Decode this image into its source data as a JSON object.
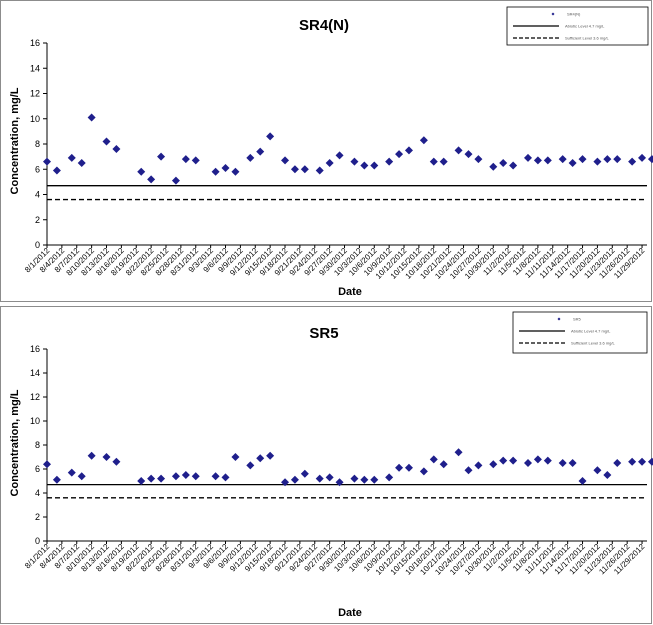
{
  "chart_data": [
    {
      "type": "scatter",
      "title": "SR4(N)",
      "xlabel": "Date",
      "ylabel": "Concentration, mg/L",
      "ylim": [
        0,
        16
      ],
      "yticks": [
        0,
        2,
        4,
        6,
        8,
        10,
        12,
        14,
        16
      ],
      "xlim": [
        "8/1/2012",
        "11/30/2012"
      ],
      "xticks": [
        "8/1/2012",
        "8/4/2012",
        "8/7/2012",
        "8/10/2012",
        "8/13/2012",
        "8/16/2012",
        "8/19/2012",
        "8/22/2012",
        "8/25/2012",
        "8/28/2012",
        "8/31/2012",
        "9/3/2012",
        "9/6/2012",
        "9/9/2012",
        "9/12/2012",
        "9/15/2012",
        "9/18/2012",
        "9/21/2012",
        "9/24/2012",
        "9/27/2012",
        "9/30/2012",
        "10/3/2012",
        "10/6/2012",
        "10/9/2012",
        "10/12/2012",
        "10/15/2012",
        "10/18/2012",
        "10/21/2012",
        "10/24/2012",
        "10/27/2012",
        "10/30/2012",
        "11/2/2012",
        "11/5/2012",
        "11/8/2012",
        "11/11/2012",
        "11/14/2012",
        "11/17/2012",
        "11/20/2012",
        "11/23/2012",
        "11/26/2012",
        "11/29/2012"
      ],
      "grid": false,
      "legend_position": "top-right",
      "series": [
        {
          "name": "SR4(N)",
          "marker": "diamond",
          "color": "#1f1f8c",
          "points": [
            {
              "x": "8/1/2012",
              "y": 6.6
            },
            {
              "x": "8/3/2012",
              "y": 5.9
            },
            {
              "x": "8/6/2012",
              "y": 6.9
            },
            {
              "x": "8/8/2012",
              "y": 6.5
            },
            {
              "x": "8/10/2012",
              "y": 10.1
            },
            {
              "x": "8/13/2012",
              "y": 8.2
            },
            {
              "x": "8/15/2012",
              "y": 7.6
            },
            {
              "x": "8/20/2012",
              "y": 5.8
            },
            {
              "x": "8/22/2012",
              "y": 5.2
            },
            {
              "x": "8/24/2012",
              "y": 7.0
            },
            {
              "x": "8/27/2012",
              "y": 5.1
            },
            {
              "x": "8/29/2012",
              "y": 6.8
            },
            {
              "x": "8/31/2012",
              "y": 6.7
            },
            {
              "x": "9/4/2012",
              "y": 5.8
            },
            {
              "x": "9/6/2012",
              "y": 6.1
            },
            {
              "x": "9/8/2012",
              "y": 5.8
            },
            {
              "x": "9/11/2012",
              "y": 6.9
            },
            {
              "x": "9/13/2012",
              "y": 7.4
            },
            {
              "x": "9/15/2012",
              "y": 8.6
            },
            {
              "x": "9/18/2012",
              "y": 6.7
            },
            {
              "x": "9/20/2012",
              "y": 6.0
            },
            {
              "x": "9/22/2012",
              "y": 6.0
            },
            {
              "x": "9/25/2012",
              "y": 5.9
            },
            {
              "x": "9/27/2012",
              "y": 6.5
            },
            {
              "x": "9/29/2012",
              "y": 7.1
            },
            {
              "x": "10/2/2012",
              "y": 6.6
            },
            {
              "x": "10/4/2012",
              "y": 6.3
            },
            {
              "x": "10/6/2012",
              "y": 6.3
            },
            {
              "x": "10/9/2012",
              "y": 6.6
            },
            {
              "x": "10/11/2012",
              "y": 7.2
            },
            {
              "x": "10/13/2012",
              "y": 7.5
            },
            {
              "x": "10/16/2012",
              "y": 8.3
            },
            {
              "x": "10/18/2012",
              "y": 6.6
            },
            {
              "x": "10/20/2012",
              "y": 6.6
            },
            {
              "x": "10/23/2012",
              "y": 7.5
            },
            {
              "x": "10/25/2012",
              "y": 7.2
            },
            {
              "x": "10/27/2012",
              "y": 6.8
            },
            {
              "x": "10/30/2012",
              "y": 6.2
            },
            {
              "x": "11/1/2012",
              "y": 6.5
            },
            {
              "x": "11/3/2012",
              "y": 6.3
            },
            {
              "x": "11/6/2012",
              "y": 6.9
            },
            {
              "x": "11/8/2012",
              "y": 6.7
            },
            {
              "x": "11/10/2012",
              "y": 6.7
            },
            {
              "x": "11/13/2012",
              "y": 6.8
            },
            {
              "x": "11/15/2012",
              "y": 6.5
            },
            {
              "x": "11/17/2012",
              "y": 6.8
            },
            {
              "x": "11/20/2012",
              "y": 6.6
            },
            {
              "x": "11/22/2012",
              "y": 6.8
            },
            {
              "x": "11/24/2012",
              "y": 6.8
            },
            {
              "x": "11/27/2012",
              "y": 6.6
            },
            {
              "x": "11/29/2012",
              "y": 6.9
            },
            {
              "x": "12/1/2012",
              "y": 6.8
            }
          ]
        }
      ],
      "reference_lines": [
        {
          "y": 4.7,
          "style": "solid",
          "legend": "Abiotic Level 4.7 mg/L"
        },
        {
          "y": 3.6,
          "style": "dashed",
          "legend": "Sufficient Level 3.6 mg/L"
        }
      ]
    },
    {
      "type": "scatter",
      "title": "SR5",
      "xlabel": "Date",
      "ylabel": "Concentration, mg/L",
      "ylim": [
        0,
        16
      ],
      "yticks": [
        0,
        2,
        4,
        6,
        8,
        10,
        12,
        14,
        16
      ],
      "xlim": [
        "8/1/2012",
        "11/30/2012"
      ],
      "xticks": [
        "8/1/2012",
        "8/4/2012",
        "8/7/2012",
        "8/10/2012",
        "8/13/2012",
        "8/16/2012",
        "8/19/2012",
        "8/22/2012",
        "8/25/2012",
        "8/28/2012",
        "8/31/2012",
        "9/3/2012",
        "9/6/2012",
        "9/9/2012",
        "9/12/2012",
        "9/15/2012",
        "9/18/2012",
        "9/21/2012",
        "9/24/2012",
        "9/27/2012",
        "9/30/2012",
        "10/3/2012",
        "10/6/2012",
        "10/9/2012",
        "10/12/2012",
        "10/15/2012",
        "10/18/2012",
        "10/21/2012",
        "10/24/2012",
        "10/27/2012",
        "10/30/2012",
        "11/2/2012",
        "11/5/2012",
        "11/8/2012",
        "11/11/2012",
        "11/14/2012",
        "11/17/2012",
        "11/20/2012",
        "11/23/2012",
        "11/26/2012",
        "11/29/2012"
      ],
      "grid": false,
      "legend_position": "top-right",
      "series": [
        {
          "name": "SR5",
          "marker": "diamond",
          "color": "#1f1f8c",
          "points": [
            {
              "x": "8/1/2012",
              "y": 6.4
            },
            {
              "x": "8/3/2012",
              "y": 5.1
            },
            {
              "x": "8/6/2012",
              "y": 5.7
            },
            {
              "x": "8/8/2012",
              "y": 5.4
            },
            {
              "x": "8/10/2012",
              "y": 7.1
            },
            {
              "x": "8/13/2012",
              "y": 7.0
            },
            {
              "x": "8/15/2012",
              "y": 6.6
            },
            {
              "x": "8/20/2012",
              "y": 5.0
            },
            {
              "x": "8/22/2012",
              "y": 5.2
            },
            {
              "x": "8/24/2012",
              "y": 5.2
            },
            {
              "x": "8/27/2012",
              "y": 5.4
            },
            {
              "x": "8/29/2012",
              "y": 5.5
            },
            {
              "x": "8/31/2012",
              "y": 5.4
            },
            {
              "x": "9/4/2012",
              "y": 5.4
            },
            {
              "x": "9/6/2012",
              "y": 5.3
            },
            {
              "x": "9/8/2012",
              "y": 7.0
            },
            {
              "x": "9/11/2012",
              "y": 6.3
            },
            {
              "x": "9/13/2012",
              "y": 6.9
            },
            {
              "x": "9/15/2012",
              "y": 7.1
            },
            {
              "x": "9/18/2012",
              "y": 4.9
            },
            {
              "x": "9/20/2012",
              "y": 5.1
            },
            {
              "x": "9/22/2012",
              "y": 5.6
            },
            {
              "x": "9/25/2012",
              "y": 5.2
            },
            {
              "x": "9/27/2012",
              "y": 5.3
            },
            {
              "x": "9/29/2012",
              "y": 4.9
            },
            {
              "x": "10/2/2012",
              "y": 5.2
            },
            {
              "x": "10/4/2012",
              "y": 5.1
            },
            {
              "x": "10/6/2012",
              "y": 5.1
            },
            {
              "x": "10/9/2012",
              "y": 5.3
            },
            {
              "x": "10/11/2012",
              "y": 6.1
            },
            {
              "x": "10/13/2012",
              "y": 6.1
            },
            {
              "x": "10/16/2012",
              "y": 5.8
            },
            {
              "x": "10/18/2012",
              "y": 6.8
            },
            {
              "x": "10/20/2012",
              "y": 6.4
            },
            {
              "x": "10/23/2012",
              "y": 7.4
            },
            {
              "x": "10/25/2012",
              "y": 5.9
            },
            {
              "x": "10/27/2012",
              "y": 6.3
            },
            {
              "x": "10/30/2012",
              "y": 6.4
            },
            {
              "x": "11/1/2012",
              "y": 6.7
            },
            {
              "x": "11/3/2012",
              "y": 6.7
            },
            {
              "x": "11/6/2012",
              "y": 6.5
            },
            {
              "x": "11/8/2012",
              "y": 6.8
            },
            {
              "x": "11/10/2012",
              "y": 6.7
            },
            {
              "x": "11/13/2012",
              "y": 6.5
            },
            {
              "x": "11/15/2012",
              "y": 6.5
            },
            {
              "x": "11/17/2012",
              "y": 5.0
            },
            {
              "x": "11/20/2012",
              "y": 5.9
            },
            {
              "x": "11/22/2012",
              "y": 5.5
            },
            {
              "x": "11/24/2012",
              "y": 6.5
            },
            {
              "x": "11/27/2012",
              "y": 6.6
            },
            {
              "x": "11/29/2012",
              "y": 6.6
            },
            {
              "x": "12/1/2012",
              "y": 6.6
            }
          ]
        }
      ],
      "reference_lines": [
        {
          "y": 4.7,
          "style": "solid",
          "legend": "Abiotic Level 4.7 mg/L"
        },
        {
          "y": 3.6,
          "style": "dashed",
          "legend": "Sufficient Level 3.6 mg/L"
        }
      ]
    }
  ]
}
